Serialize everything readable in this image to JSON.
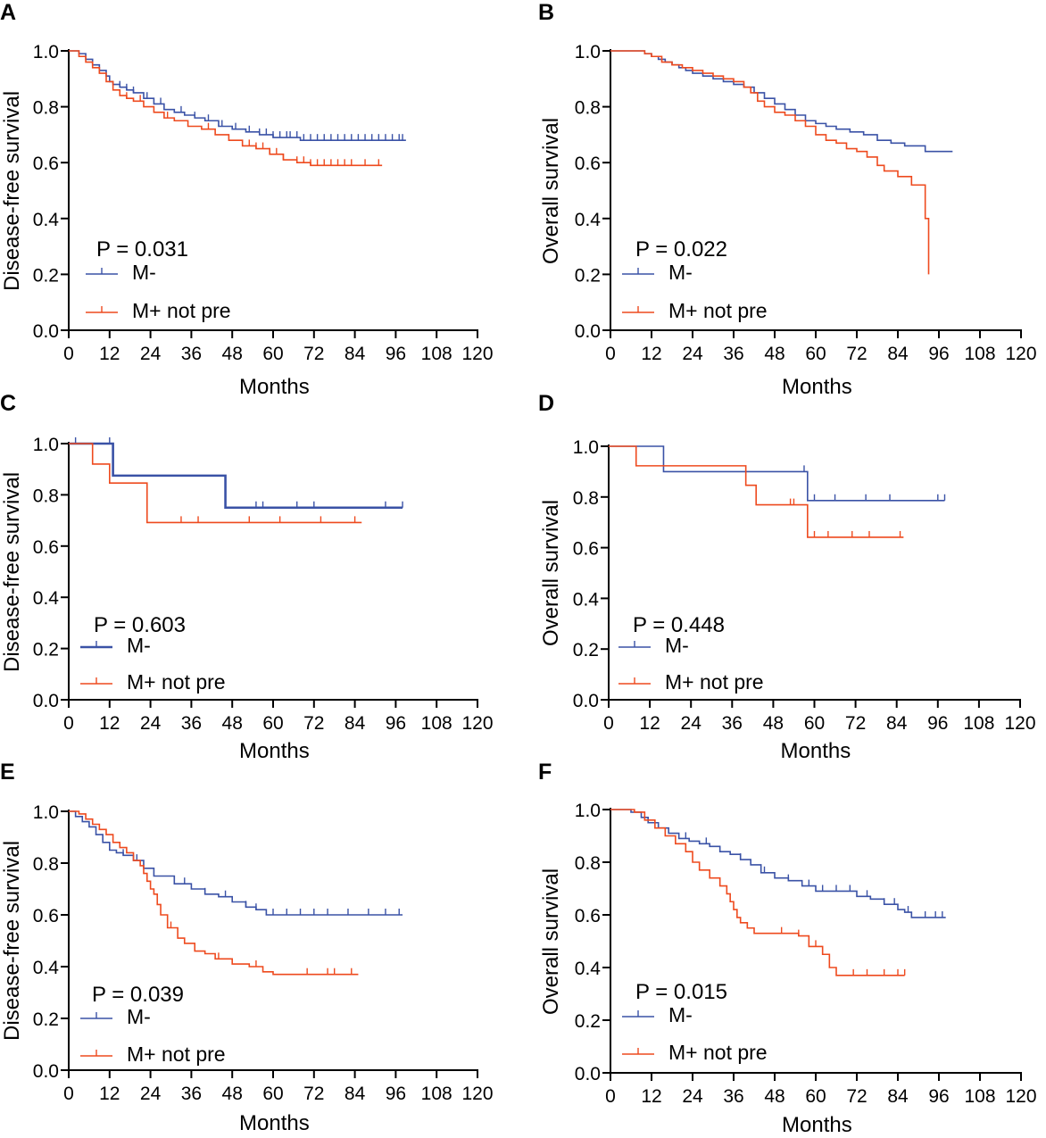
{
  "colors": {
    "m_neg": "#3a52a6",
    "m_pos": "#ee4a1e",
    "axis": "#000000"
  },
  "chart_data": [
    {
      "type": "line",
      "panel": "A",
      "pvalue": "P = 0.031",
      "ylabel": "Disease-free survival",
      "xlabel": "Months",
      "xlim": [
        0,
        120
      ],
      "ylim": [
        0,
        1
      ],
      "xticks": [
        "0",
        "12",
        "24",
        "36",
        "48",
        "60",
        "72",
        "84",
        "96",
        "108",
        "120"
      ],
      "yticks": [
        "0.0",
        "0.2",
        "0.4",
        "0.6",
        "0.8",
        "1.0"
      ],
      "series": [
        {
          "name": "M-",
          "color": "#3a52a6",
          "x": [
            0,
            3,
            5,
            7,
            9,
            11,
            12,
            13,
            15,
            17,
            19,
            22,
            25,
            28,
            31,
            34,
            37,
            40,
            44,
            48,
            52,
            56,
            60,
            64,
            68,
            99
          ],
          "y": [
            1.0,
            0.99,
            0.97,
            0.95,
            0.93,
            0.91,
            0.89,
            0.88,
            0.87,
            0.86,
            0.85,
            0.83,
            0.81,
            0.79,
            0.78,
            0.77,
            0.76,
            0.75,
            0.73,
            0.72,
            0.71,
            0.7,
            0.69,
            0.69,
            0.68,
            0.68
          ],
          "censor": [
            15,
            17,
            19,
            23,
            27,
            33,
            37,
            41,
            45,
            49,
            53,
            56,
            58,
            60,
            62,
            64,
            65,
            67,
            69,
            71,
            73,
            75,
            77,
            79,
            81,
            83,
            85,
            87,
            89,
            91,
            93,
            95,
            97,
            98
          ]
        },
        {
          "name": "M+ not pre",
          "color": "#ee4a1e",
          "x": [
            0,
            3,
            5,
            7,
            9,
            11,
            13,
            15,
            17,
            19,
            22,
            25,
            28,
            31,
            35,
            39,
            43,
            47,
            51,
            55,
            59,
            63,
            67,
            71,
            92
          ],
          "y": [
            1.0,
            0.98,
            0.96,
            0.94,
            0.92,
            0.89,
            0.86,
            0.84,
            0.83,
            0.82,
            0.8,
            0.78,
            0.76,
            0.75,
            0.73,
            0.72,
            0.7,
            0.68,
            0.66,
            0.65,
            0.63,
            0.61,
            0.6,
            0.59,
            0.59
          ],
          "censor": [
            9,
            17,
            21,
            29,
            41,
            53,
            55,
            57,
            59,
            61,
            63,
            67,
            69,
            71,
            73,
            75,
            77,
            79,
            81,
            83,
            87,
            91
          ]
        }
      ]
    },
    {
      "type": "line",
      "panel": "B",
      "pvalue": "P = 0.022",
      "ylabel": "Overall survival",
      "xlabel": "Months",
      "xlim": [
        0,
        120
      ],
      "ylim": [
        0,
        1
      ],
      "xticks": [
        "0",
        "12",
        "24",
        "36",
        "48",
        "60",
        "72",
        "84",
        "96",
        "108",
        "120"
      ],
      "yticks": [
        "0.0",
        "0.2",
        "0.4",
        "0.6",
        "0.8",
        "1.0"
      ],
      "series": [
        {
          "name": "M-",
          "color": "#3a52a6",
          "x": [
            0,
            8,
            10,
            12,
            14,
            16,
            18,
            20,
            22,
            24,
            27,
            30,
            33,
            36,
            39,
            42,
            45,
            48,
            51,
            54,
            57,
            60,
            63,
            66,
            70,
            74,
            78,
            82,
            86,
            90,
            92,
            100
          ],
          "y": [
            1.0,
            1.0,
            0.99,
            0.98,
            0.97,
            0.96,
            0.95,
            0.94,
            0.93,
            0.92,
            0.91,
            0.9,
            0.89,
            0.88,
            0.87,
            0.85,
            0.83,
            0.81,
            0.79,
            0.77,
            0.75,
            0.74,
            0.73,
            0.72,
            0.71,
            0.7,
            0.68,
            0.67,
            0.66,
            0.66,
            0.64,
            0.64
          ]
        },
        {
          "name": "M+ not pre",
          "color": "#ee4a1e",
          "x": [
            0,
            8,
            10,
            12,
            15,
            18,
            21,
            24,
            27,
            30,
            33,
            36,
            39,
            41,
            43,
            45,
            48,
            51,
            54,
            57,
            60,
            63,
            66,
            69,
            72,
            75,
            78,
            80,
            84,
            88,
            91,
            92,
            93
          ],
          "y": [
            1.0,
            1.0,
            0.99,
            0.98,
            0.96,
            0.95,
            0.94,
            0.93,
            0.92,
            0.91,
            0.9,
            0.89,
            0.87,
            0.85,
            0.82,
            0.8,
            0.78,
            0.77,
            0.75,
            0.73,
            0.7,
            0.68,
            0.67,
            0.65,
            0.64,
            0.62,
            0.59,
            0.57,
            0.55,
            0.52,
            0.52,
            0.4,
            0.2
          ]
        }
      ]
    },
    {
      "type": "line",
      "panel": "C",
      "pvalue": "P = 0.603",
      "ylabel": "Disease-free survival",
      "xlabel": "Months",
      "xlim": [
        0,
        120
      ],
      "ylim": [
        0,
        1
      ],
      "xticks": [
        "0",
        "12",
        "24",
        "36",
        "48",
        "60",
        "72",
        "84",
        "96",
        "108",
        "120"
      ],
      "yticks": [
        "0.0",
        "0.2",
        "0.4",
        "0.6",
        "0.8",
        "1.0"
      ],
      "series": [
        {
          "name": "M-",
          "color": "#3a52a6",
          "x": [
            0,
            13,
            46,
            98
          ],
          "y": [
            1.0,
            0.875,
            0.75,
            0.75
          ],
          "censor": [
            2,
            12,
            55,
            57,
            67,
            72,
            93,
            98
          ]
        },
        {
          "name": "M+ not pre",
          "color": "#ee4a1e",
          "x": [
            0,
            7,
            12,
            23,
            86
          ],
          "y": [
            1.0,
            0.92,
            0.846,
            0.692,
            0.692
          ],
          "censor": [
            33,
            38,
            53,
            62,
            74,
            84
          ]
        }
      ]
    },
    {
      "type": "line",
      "panel": "D",
      "pvalue": "P = 0.448",
      "ylabel": "Overall survival",
      "xlabel": "Months",
      "xlim": [
        0,
        120
      ],
      "ylim": [
        0,
        1
      ],
      "xticks": [
        "0",
        "12",
        "24",
        "36",
        "48",
        "60",
        "72",
        "84",
        "96",
        "108",
        "120"
      ],
      "yticks": [
        "0.0",
        "0.2",
        "0.4",
        "0.6",
        "0.8",
        "1.0"
      ],
      "series": [
        {
          "name": "M-",
          "color": "#3a52a6",
          "x": [
            0,
            16,
            57,
            58,
            98
          ],
          "y": [
            1.0,
            0.9,
            0.9,
            0.786,
            0.786
          ],
          "censor": [
            57,
            60,
            66,
            75,
            82,
            96,
            98
          ]
        },
        {
          "name": "M+ not pre",
          "color": "#ee4a1e",
          "x": [
            0,
            8,
            40,
            43,
            58,
            86
          ],
          "y": [
            1.0,
            0.923,
            0.846,
            0.769,
            0.641,
            0.641
          ],
          "censor": [
            53,
            54,
            60,
            64,
            71,
            76,
            85
          ]
        }
      ]
    },
    {
      "type": "line",
      "panel": "E",
      "pvalue": "P = 0.039",
      "ylabel": "Disease-free survival",
      "xlabel": "Months",
      "xlim": [
        0,
        120
      ],
      "ylim": [
        0,
        1
      ],
      "xticks": [
        "0",
        "12",
        "24",
        "36",
        "48",
        "60",
        "72",
        "84",
        "96",
        "108",
        "120"
      ],
      "yticks": [
        "0.0",
        "0.2",
        "0.4",
        "0.6",
        "0.8",
        "1.0"
      ],
      "series": [
        {
          "name": "M-",
          "color": "#3a52a6",
          "x": [
            0,
            2,
            4,
            6,
            8,
            10,
            12,
            14,
            16,
            19,
            22,
            25,
            27,
            31,
            36,
            40,
            44,
            48,
            52,
            55,
            58,
            64,
            98
          ],
          "y": [
            1.0,
            0.98,
            0.96,
            0.94,
            0.91,
            0.88,
            0.85,
            0.84,
            0.83,
            0.81,
            0.78,
            0.75,
            0.75,
            0.72,
            0.7,
            0.68,
            0.67,
            0.65,
            0.63,
            0.62,
            0.6,
            0.6,
            0.6
          ],
          "censor": [
            12,
            16,
            20,
            34,
            40,
            46,
            52,
            55,
            60,
            64,
            68,
            72,
            76,
            82,
            88,
            93,
            97
          ]
        },
        {
          "name": "M+ not pre",
          "color": "#ee4a1e",
          "x": [
            0,
            3,
            5,
            7,
            9,
            11,
            13,
            15,
            17,
            19,
            21,
            22,
            23,
            24,
            25,
            26,
            27,
            29,
            32,
            34,
            37,
            40,
            43,
            48,
            53,
            57,
            60,
            85
          ],
          "y": [
            1.0,
            0.99,
            0.97,
            0.95,
            0.93,
            0.91,
            0.88,
            0.86,
            0.84,
            0.81,
            0.79,
            0.76,
            0.73,
            0.7,
            0.68,
            0.64,
            0.6,
            0.55,
            0.51,
            0.49,
            0.46,
            0.45,
            0.43,
            0.41,
            0.4,
            0.38,
            0.37,
            0.37
          ],
          "censor": [
            30,
            44,
            55,
            70,
            76,
            78,
            83
          ]
        }
      ]
    },
    {
      "type": "line",
      "panel": "F",
      "pvalue": "P = 0.015",
      "ylabel": "Overall survival",
      "xlabel": "Months",
      "xlim": [
        0,
        120
      ],
      "ylim": [
        0,
        1
      ],
      "xticks": [
        "0",
        "12",
        "24",
        "36",
        "48",
        "60",
        "72",
        "84",
        "96",
        "108",
        "120"
      ],
      "yticks": [
        "0.0",
        "0.2",
        "0.4",
        "0.6",
        "0.8",
        "1.0"
      ],
      "series": [
        {
          "name": "M-",
          "color": "#3a52a6",
          "x": [
            0,
            6,
            9,
            11,
            14,
            17,
            20,
            23,
            26,
            29,
            32,
            35,
            38,
            41,
            44,
            48,
            52,
            56,
            60,
            64,
            68,
            72,
            76,
            80,
            84,
            86,
            88,
            98
          ],
          "y": [
            1.0,
            0.99,
            0.97,
            0.95,
            0.93,
            0.91,
            0.89,
            0.88,
            0.87,
            0.86,
            0.84,
            0.83,
            0.81,
            0.79,
            0.76,
            0.74,
            0.73,
            0.71,
            0.69,
            0.69,
            0.69,
            0.67,
            0.66,
            0.64,
            0.62,
            0.61,
            0.59,
            0.59
          ],
          "censor": [
            22,
            28,
            38,
            45,
            52,
            58,
            62,
            66,
            70,
            75,
            80,
            83,
            87,
            92,
            95,
            97
          ]
        },
        {
          "name": "M+ not pre",
          "color": "#ee4a1e",
          "x": [
            0,
            7,
            10,
            13,
            16,
            19,
            22,
            24,
            26,
            29,
            32,
            34,
            35,
            36,
            37,
            38,
            40,
            42,
            44,
            48,
            52,
            55,
            58,
            62,
            64,
            66,
            86
          ],
          "y": [
            1.0,
            0.99,
            0.96,
            0.93,
            0.9,
            0.87,
            0.84,
            0.8,
            0.77,
            0.74,
            0.71,
            0.68,
            0.65,
            0.62,
            0.59,
            0.57,
            0.55,
            0.53,
            0.53,
            0.53,
            0.53,
            0.52,
            0.48,
            0.45,
            0.4,
            0.37,
            0.37
          ],
          "censor": [
            50,
            55,
            60,
            71,
            75,
            80,
            84,
            86
          ]
        }
      ]
    }
  ]
}
